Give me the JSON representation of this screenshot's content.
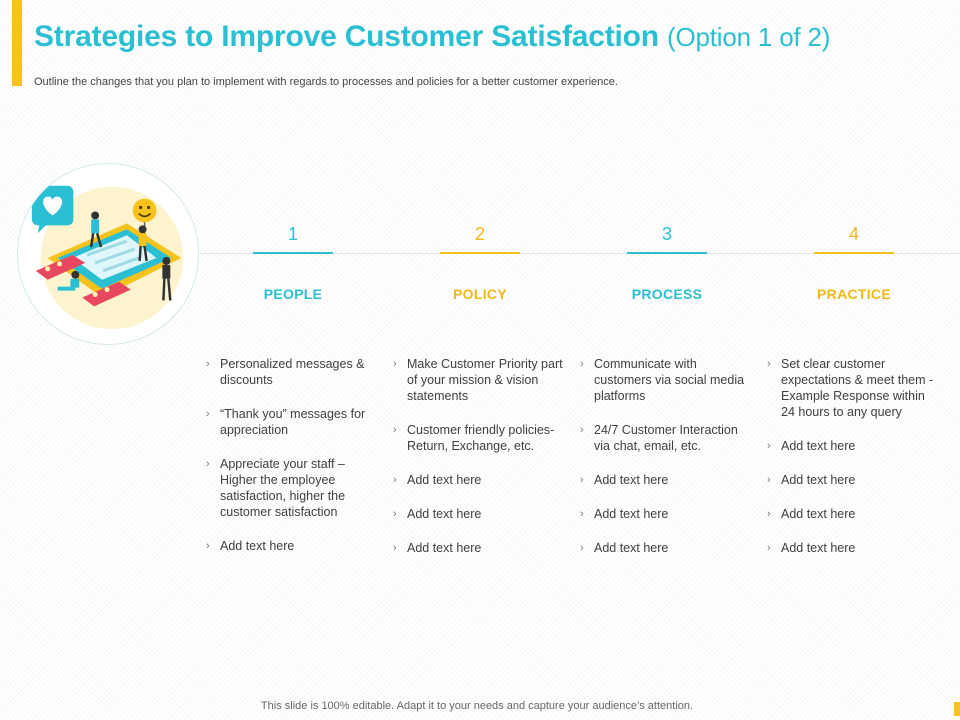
{
  "header": {
    "title": "Strategies to Improve Customer Satisfaction",
    "title_suffix": "(Option 1 of 2)",
    "subtitle": "Outline the changes that you plan to implement with regards to processes and policies for a better customer experience."
  },
  "illustration": {
    "icons": [
      "heart-chat-icon",
      "smiley-icon",
      "tablet-icon",
      "people-icon"
    ]
  },
  "columns": [
    {
      "number": "1",
      "heading": "PEOPLE",
      "accent": "#2bbfd3",
      "items": [
        "Personalized messages & discounts",
        "“Thank you” messages for appreciation",
        "Appreciate your staff – Higher the employee satisfaction, higher the customer satisfaction",
        "Add text here"
      ]
    },
    {
      "number": "2",
      "heading": "POLICY",
      "accent": "#f6c21c",
      "items": [
        "Make Customer Priority part of your mission & vision statements",
        "Customer friendly policies- Return, Exchange, etc.",
        "Add text here",
        "Add text here",
        "Add text here"
      ]
    },
    {
      "number": "3",
      "heading": "PROCESS",
      "accent": "#2bbfd3",
      "items": [
        "Communicate with customers via social media platforms",
        "24/7 Customer Interaction via chat, email, etc.",
        "Add text here",
        "Add text here",
        "Add text here"
      ]
    },
    {
      "number": "4",
      "heading": "PRACTICE",
      "accent": "#f6c21c",
      "items": [
        "Set clear customer expectations & meet them - Example Response within 24 hours to any query",
        "Add text here",
        "Add text here",
        "Add text here",
        "Add text here"
      ]
    }
  ],
  "bullet_glyph": "›",
  "footer": {
    "text": "This slide is 100% editable. Adapt it to your needs and capture your audience’s attention."
  }
}
